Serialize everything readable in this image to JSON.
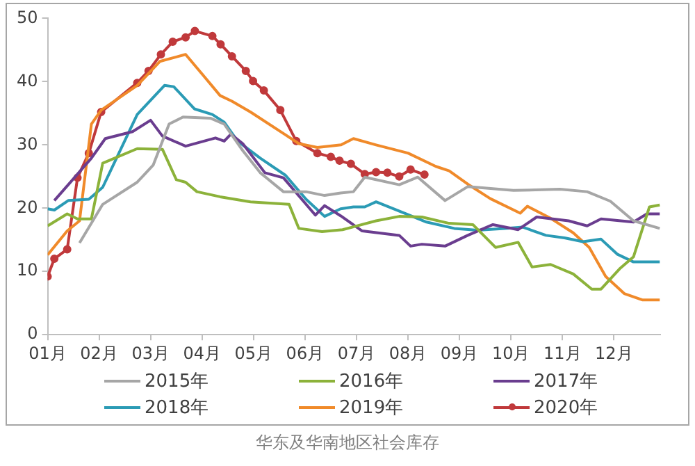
{
  "chart_data": {
    "type": "line",
    "title": "华东及华南地区社会库存",
    "xlim": [
      1,
      12.9
    ],
    "xticks": [
      {
        "value": 1,
        "label": "01月"
      },
      {
        "value": 2,
        "label": "02月"
      },
      {
        "value": 3,
        "label": "03月"
      },
      {
        "value": 4,
        "label": "04月"
      },
      {
        "value": 5,
        "label": "05月"
      },
      {
        "value": 6,
        "label": "06月"
      },
      {
        "value": 7,
        "label": "07月"
      },
      {
        "value": 8,
        "label": "08月"
      },
      {
        "value": 9,
        "label": "09月"
      },
      {
        "value": 10,
        "label": "10月"
      },
      {
        "value": 11,
        "label": "11月"
      },
      {
        "value": 12,
        "label": "12月"
      }
    ],
    "ylim": [
      0,
      50
    ],
    "yticks": [
      0,
      10,
      20,
      30,
      40,
      50
    ],
    "grid": false,
    "legend": "bottom",
    "marker": "none",
    "line_style": "solid",
    "series": [
      {
        "name": "2015年",
        "color": "#a6a6a6",
        "x": [
          1.62,
          2.07,
          2.74,
          3.05,
          3.36,
          3.63,
          4.17,
          4.43,
          4.79,
          5.13,
          5.58,
          6.02,
          6.38,
          6.69,
          6.94,
          7.16,
          7.83,
          8.19,
          8.72,
          9.16,
          10.05,
          10.95,
          11.48,
          11.93,
          12.38,
          12.89
        ],
        "values": [
          14.5,
          20.6,
          24.1,
          26.8,
          33.3,
          34.4,
          34.2,
          33.3,
          29.1,
          25.6,
          22.6,
          22.6,
          22,
          22.4,
          22.6,
          24.9,
          23.7,
          24.9,
          21.2,
          23.4,
          22.8,
          23,
          22.6,
          21.1,
          18,
          16.8
        ]
      },
      {
        "name": "2016年",
        "color": "#8cb23a",
        "x": [
          1,
          1.38,
          1.58,
          1.85,
          2.07,
          2.74,
          3.23,
          3.5,
          3.68,
          3.9,
          4.35,
          4.94,
          5.69,
          5.88,
          6.33,
          6.73,
          7.38,
          7.83,
          8.27,
          8.8,
          9.26,
          9.7,
          10.14,
          10.41,
          10.77,
          11.21,
          11.57,
          11.75,
          12.11,
          12.38,
          12.69,
          12.89
        ],
        "values": [
          17.2,
          19.1,
          18.3,
          18.3,
          27.1,
          29.4,
          29.3,
          24.5,
          24.1,
          22.6,
          21.8,
          21,
          20.6,
          16.8,
          16.3,
          16.6,
          18,
          18.7,
          18.6,
          17.6,
          17.4,
          13.8,
          14.6,
          10.7,
          11.1,
          9.6,
          7.2,
          7.2,
          10.4,
          12.3,
          20.2,
          20.5
        ]
      },
      {
        "name": "2017年",
        "color": "#6a3d8f",
        "x": [
          1.13,
          1.4,
          1.85,
          2.12,
          2.65,
          3,
          3.23,
          3.68,
          4.26,
          4.43,
          4.56,
          4.79,
          5.22,
          5.58,
          6.2,
          6.38,
          6.69,
          7.11,
          7.83,
          8.05,
          8.27,
          8.72,
          9.16,
          9.65,
          10.14,
          10.5,
          11.12,
          11.48,
          11.75,
          12.38,
          12.64,
          12.89
        ],
        "values": [
          21.2,
          23.7,
          27.9,
          31,
          32.1,
          33.9,
          31.4,
          29.8,
          31.1,
          30.6,
          31.7,
          30.2,
          25.6,
          24.8,
          18.9,
          20.4,
          18.8,
          16.4,
          15.7,
          14,
          14.3,
          14,
          15.7,
          17.4,
          16.6,
          18.6,
          18,
          17.2,
          18.3,
          17.8,
          19.1,
          19.1
        ]
      },
      {
        "name": "2018年",
        "color": "#2b9bb5",
        "x": [
          1,
          1.13,
          1.4,
          1.8,
          2.07,
          2.74,
          3.27,
          3.45,
          3.85,
          4.2,
          4.43,
          4.69,
          5.13,
          5.62,
          6.02,
          6.38,
          6.69,
          6.94,
          7.16,
          7.38,
          7.96,
          8.36,
          8.9,
          9.35,
          9.88,
          10.23,
          10.68,
          11.04,
          11.4,
          11.75,
          12.07,
          12.38,
          12.89
        ],
        "values": [
          19.9,
          19.7,
          21.2,
          21.4,
          23.3,
          34.8,
          39.4,
          39.2,
          35.7,
          34.8,
          33.6,
          30.6,
          27.9,
          25.2,
          21.4,
          18.7,
          19.9,
          20.2,
          20.2,
          21,
          19.1,
          17.8,
          16.8,
          16.5,
          16.8,
          17,
          15.7,
          15.3,
          14.7,
          15.1,
          12.7,
          11.5,
          11.5
        ]
      },
      {
        "name": "2019年",
        "color": "#f08a2a",
        "x": [
          1,
          1.38,
          1.62,
          1.85,
          2.04,
          2.74,
          3.18,
          3.68,
          3.99,
          4.35,
          4.58,
          4.94,
          5.6,
          5.88,
          6.24,
          6.7,
          6.94,
          7.38,
          8,
          8.54,
          8.8,
          9.16,
          9.6,
          10.18,
          10.32,
          10.77,
          11.21,
          11.52,
          11.84,
          12.2,
          12.55,
          12.89
        ],
        "values": [
          12.6,
          16.4,
          18,
          33.3,
          35.5,
          39.4,
          43.2,
          44.3,
          41.3,
          37.8,
          36.9,
          35.2,
          31.7,
          30.2,
          29.6,
          30,
          31,
          30,
          28.7,
          26.6,
          25.9,
          23.8,
          21.5,
          19.2,
          20.3,
          18.4,
          16.1,
          13.8,
          9.2,
          6.5,
          5.5,
          5.5
        ]
      },
      {
        "name": "2020年",
        "color": "#c0393b",
        "marker": "circle",
        "x": [
          1,
          1.13,
          1.38,
          1.58,
          1.8,
          2.04,
          2.74,
          2.96,
          3.2,
          3.43,
          3.68,
          3.86,
          4.2,
          4.36,
          4.58,
          4.85,
          4.99,
          5.2,
          5.52,
          5.83,
          6.24,
          6.5,
          6.67,
          6.89,
          7.16,
          7.38,
          7.6,
          7.83,
          8.05,
          8.32
        ],
        "values": [
          9.2,
          12,
          13.5,
          24.8,
          28.7,
          35.2,
          39.8,
          41.7,
          44.3,
          46.3,
          47,
          48,
          47.2,
          45.9,
          44,
          41.7,
          40.1,
          38.6,
          35.5,
          30.6,
          28.7,
          28.1,
          27.5,
          27,
          25.4,
          25.7,
          25.6,
          25,
          26.1,
          25.3
        ]
      }
    ]
  }
}
